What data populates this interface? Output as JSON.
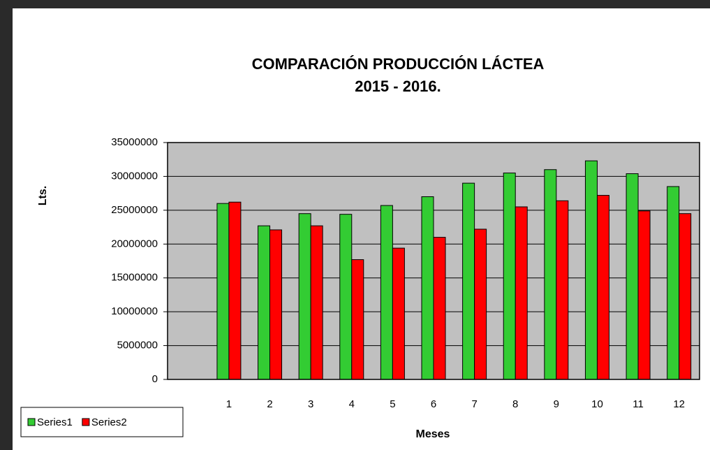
{
  "chart_data": {
    "type": "bar",
    "title": [
      "COMPARACIÓN PRODUCCIÓN LÁCTEA",
      "2015 - 2016."
    ],
    "x_label": "Meses",
    "y_label": "Lts.",
    "categories": [
      null,
      "1",
      "2",
      "3",
      "4",
      "5",
      "6",
      "7",
      "8",
      "9",
      "10",
      "11",
      "12"
    ],
    "series": [
      {
        "name": "Series1",
        "color": "#33cc33",
        "values": [
          null,
          26000000,
          22700000,
          24500000,
          24400000,
          25700000,
          27000000,
          29000000,
          30500000,
          31000000,
          32300000,
          30400000,
          28500000
        ]
      },
      {
        "name": "Series2",
        "color": "#ff0000",
        "values": [
          null,
          26200000,
          22100000,
          22700000,
          17700000,
          19400000,
          21000000,
          22200000,
          25500000,
          26400000,
          27200000,
          24900000,
          24500000
        ]
      }
    ],
    "ylim": [
      0,
      35000000
    ],
    "yticks": [
      0,
      5000000,
      10000000,
      15000000,
      20000000,
      25000000,
      30000000,
      35000000
    ],
    "grid": true,
    "legend": "bottom-left",
    "plot_background": "#c0c0c0"
  }
}
